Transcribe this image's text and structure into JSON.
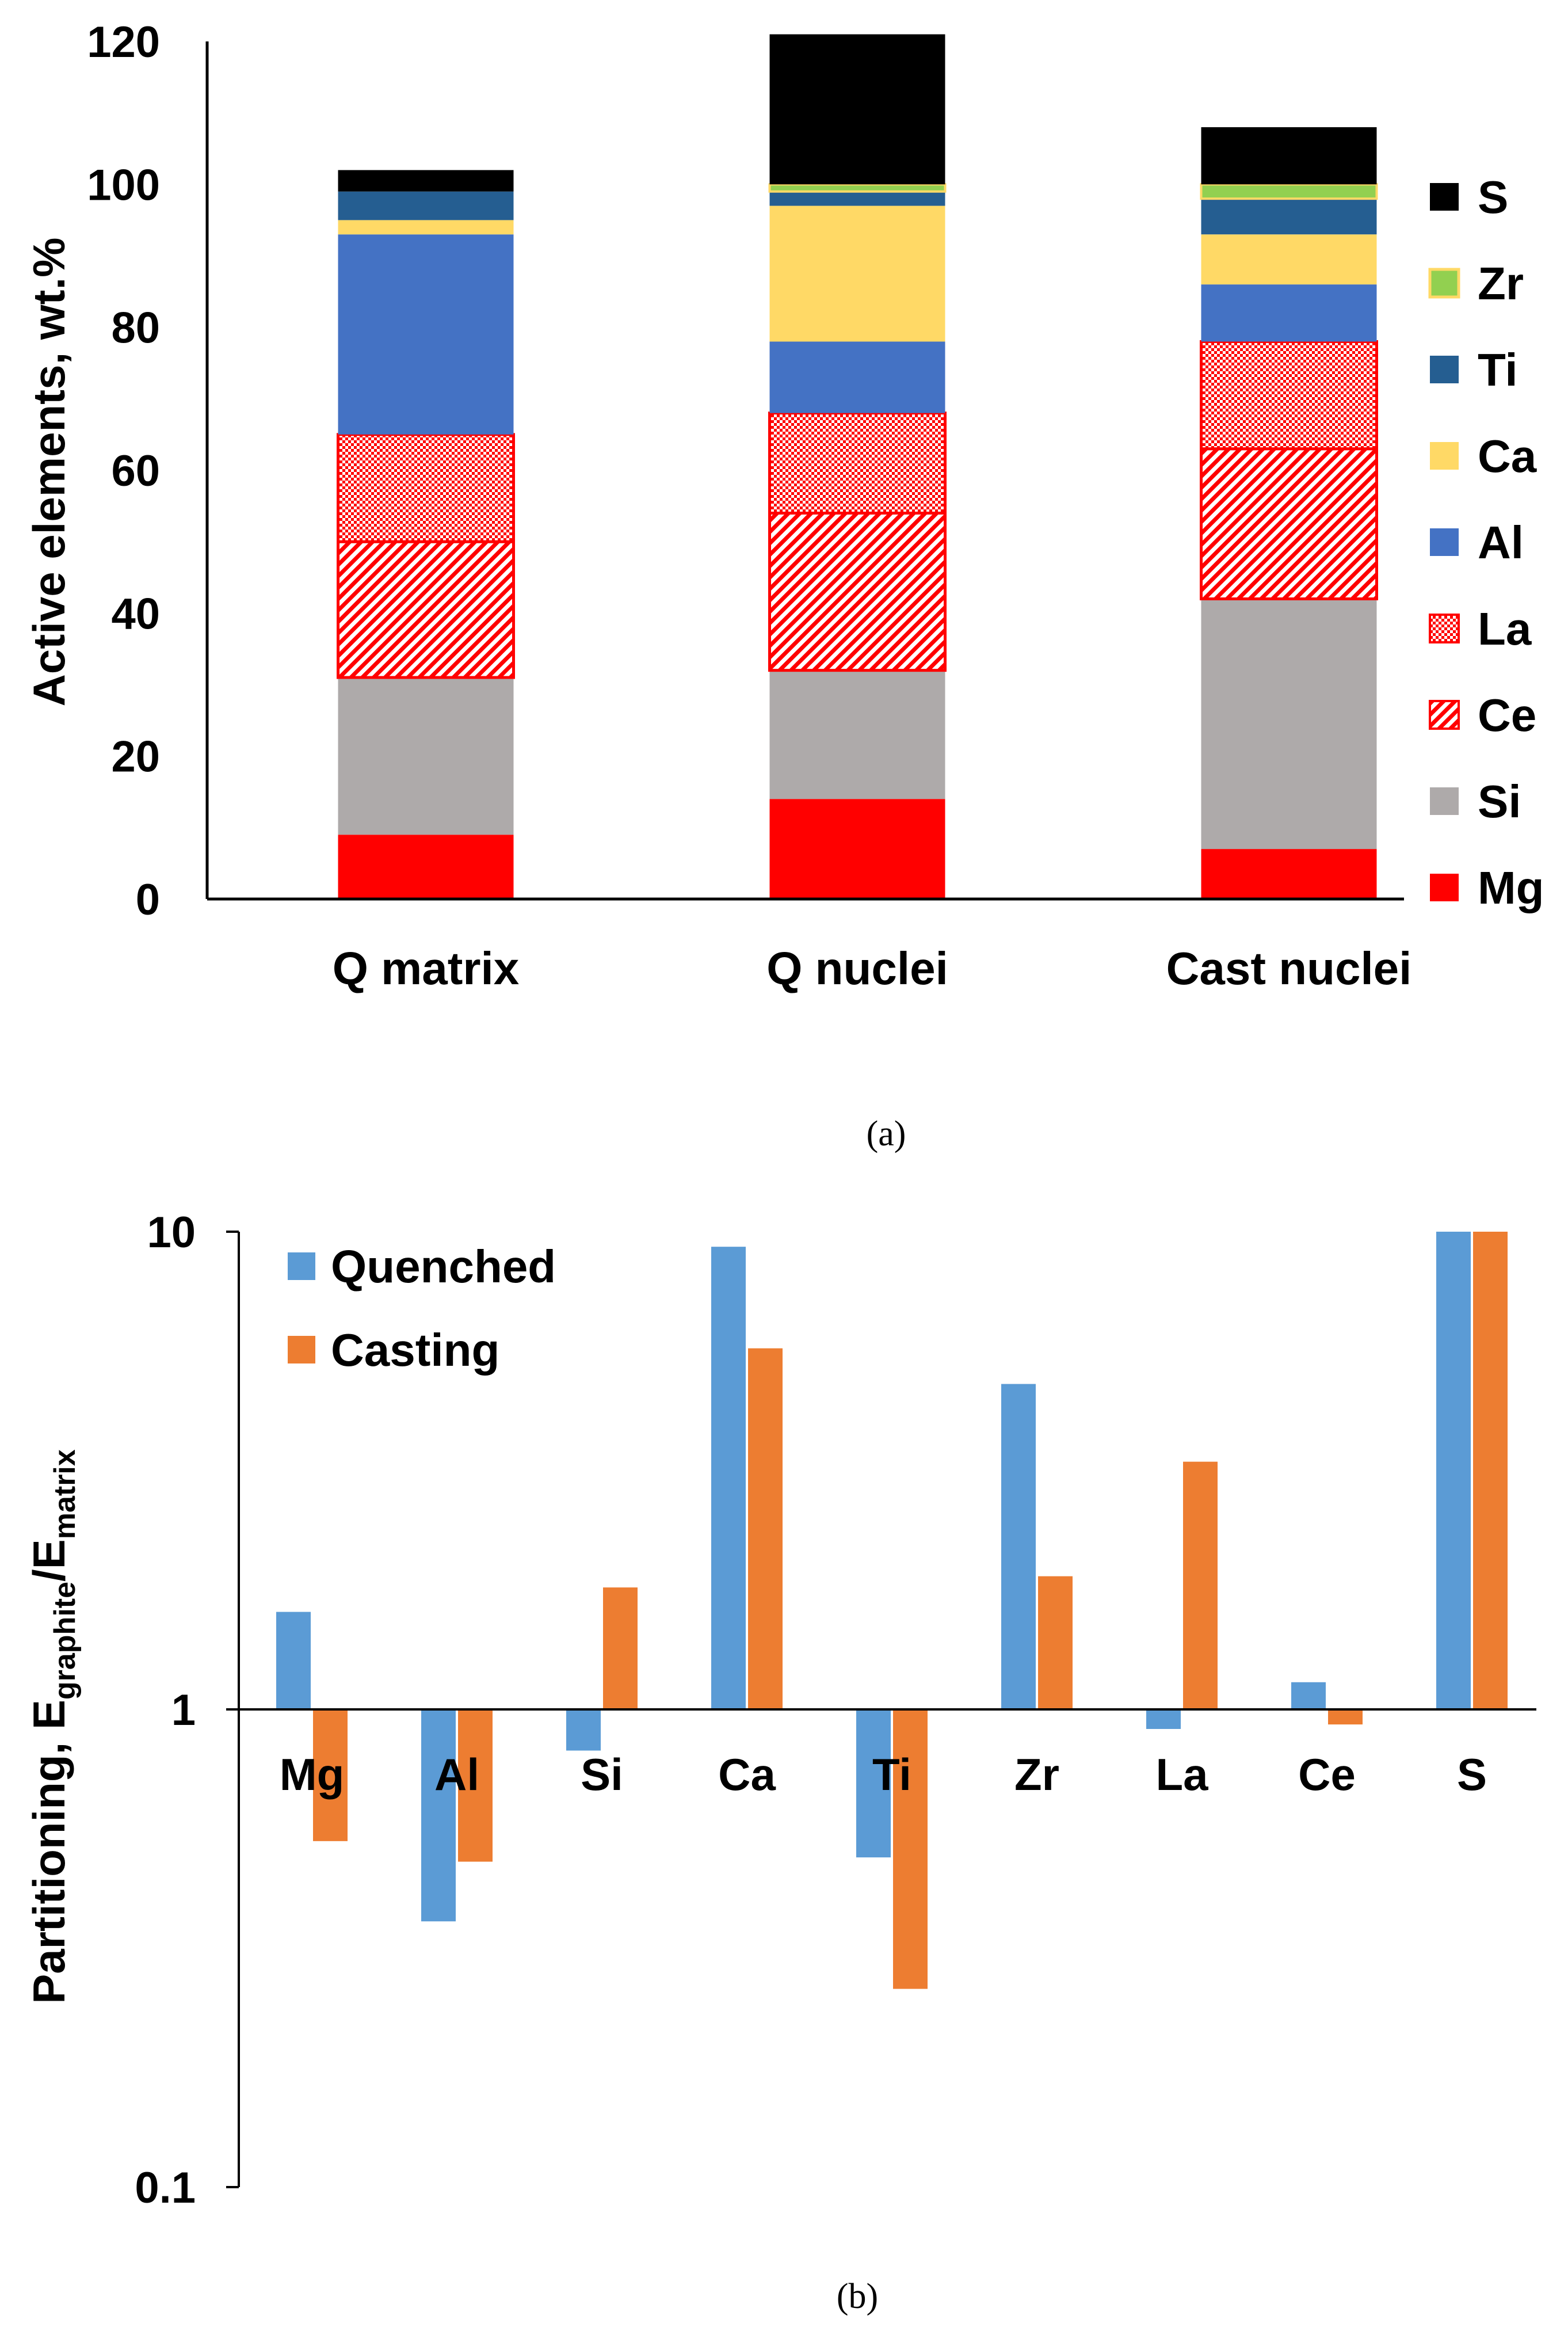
{
  "colors": {
    "S": "#000000",
    "Zr": "#92D050",
    "Zr_border": "#FFD966",
    "Ti": "#255E91",
    "Ca": "#FFD966",
    "Al": "#4472C4",
    "La": "#FF0000",
    "Ce": "#FF0000",
    "Si": "#AEAAAA",
    "Mg": "#FF0000",
    "Quenched": "#5B9BD5",
    "Casting": "#ED7D31"
  },
  "chart_data": [
    {
      "type": "bar",
      "stacked": true,
      "caption": "(a)",
      "ylabel": "Active elements, wt.%",
      "xlabel": "",
      "ylim": [
        0,
        120
      ],
      "yticks": [
        "0",
        "20",
        "40",
        "60",
        "80",
        "100",
        "120"
      ],
      "categories": [
        "Q matrix",
        "Q nuclei",
        "Cast nuclei"
      ],
      "legend_position": "right",
      "series": [
        {
          "name": "Mg",
          "fill": "solid",
          "values": [
            9,
            14,
            7
          ]
        },
        {
          "name": "Si",
          "fill": "solid",
          "values": [
            22,
            18,
            35
          ]
        },
        {
          "name": "Ce",
          "fill": "diagonal",
          "values": [
            19,
            22,
            21
          ]
        },
        {
          "name": "La",
          "fill": "checker",
          "values": [
            15,
            14,
            15
          ]
        },
        {
          "name": "Al",
          "fill": "solid",
          "values": [
            28,
            10,
            8
          ]
        },
        {
          "name": "Ca",
          "fill": "solid",
          "values": [
            2,
            19,
            7
          ]
        },
        {
          "name": "Ti",
          "fill": "solid",
          "values": [
            4,
            2,
            5
          ]
        },
        {
          "name": "Zr",
          "fill": "solid",
          "values": [
            0,
            1,
            2
          ]
        },
        {
          "name": "S",
          "fill": "solid",
          "values": [
            3,
            21,
            8
          ]
        }
      ],
      "legend": [
        "S",
        "Zr",
        "Ti",
        "Ca",
        "Al",
        "La",
        "Ce",
        "Si",
        "Mg"
      ]
    },
    {
      "type": "bar",
      "caption": "(b)",
      "ylabel_main": "Partitioning, E",
      "ylabel_sub1": "graphite",
      "ylabel_mid": "/E",
      "ylabel_sub2": "matrix",
      "yscale": "log",
      "ylim": [
        0.1,
        10
      ],
      "baseline": 1,
      "yticks": [
        "0.1",
        "1",
        "10"
      ],
      "categories": [
        "Mg",
        "Al",
        "Si",
        "Ca",
        "Ti",
        "Zr",
        "La",
        "Ce",
        "S"
      ],
      "legend_position": "top-left",
      "series": [
        {
          "name": "Quenched",
          "values": [
            1.6,
            0.36,
            0.82,
            9.3,
            0.49,
            4.8,
            0.91,
            1.14,
            10
          ]
        },
        {
          "name": "Casting",
          "values": [
            0.53,
            0.48,
            1.8,
            5.7,
            0.26,
            1.9,
            3.3,
            0.93,
            10
          ]
        }
      ]
    }
  ]
}
